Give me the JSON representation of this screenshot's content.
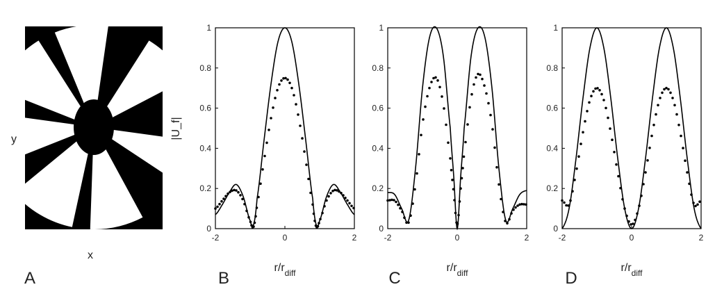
{
  "panel_a": {
    "letter": "A",
    "xlabel": "x",
    "ylabel": "y",
    "description_colors": {
      "foreground": "#000000",
      "background": "#ffffff"
    }
  },
  "panels": [
    {
      "letter": "B",
      "ylabel": "|U_f|",
      "xlabel_main": "r/r",
      "xlabel_sub": "diff"
    },
    {
      "letter": "C",
      "ylabel": "",
      "xlabel_main": "r/r",
      "xlabel_sub": "diff"
    },
    {
      "letter": "D",
      "ylabel": "",
      "xlabel_main": "r/r",
      "xlabel_sub": "diff"
    }
  ],
  "chart_data": [
    {
      "type": "line",
      "panel": "B",
      "xlim": [
        -2,
        2
      ],
      "ylim": [
        0,
        1
      ],
      "x_ticks": [
        "-2",
        "0",
        "2"
      ],
      "y_ticks": [
        "0",
        "0.2",
        "0.4",
        "0.6",
        "0.8",
        "1"
      ],
      "series": [
        {
          "style": "solid",
          "x": [
            -2,
            -1.8,
            -1.6,
            -1.4,
            -1.2,
            -1.0,
            -0.9,
            -0.8,
            -0.6,
            -0.4,
            -0.2,
            0,
            0.2,
            0.4,
            0.6,
            0.8,
            0.9,
            1.0,
            1.2,
            1.4,
            1.6,
            1.8,
            2
          ],
          "y": [
            0.07,
            0.12,
            0.18,
            0.22,
            0.16,
            0.04,
            0.02,
            0.15,
            0.44,
            0.72,
            0.93,
            1.0,
            0.93,
            0.72,
            0.44,
            0.15,
            0.02,
            0.04,
            0.16,
            0.22,
            0.18,
            0.12,
            0.07
          ]
        },
        {
          "style": "dotted",
          "x": [
            -2,
            -1.8,
            -1.6,
            -1.4,
            -1.2,
            -1.0,
            -0.9,
            -0.8,
            -0.6,
            -0.4,
            -0.2,
            0,
            0.2,
            0.4,
            0.6,
            0.8,
            0.9,
            1.0,
            1.2,
            1.4,
            1.6,
            1.8,
            2
          ],
          "y": [
            0.1,
            0.14,
            0.18,
            0.19,
            0.14,
            0.04,
            0.01,
            0.12,
            0.34,
            0.55,
            0.7,
            0.75,
            0.7,
            0.55,
            0.34,
            0.12,
            0.01,
            0.04,
            0.14,
            0.19,
            0.18,
            0.14,
            0.1
          ]
        }
      ]
    },
    {
      "type": "line",
      "panel": "C",
      "xlim": [
        -2,
        2
      ],
      "ylim": [
        0,
        1
      ],
      "x_ticks": [
        "-2",
        "0",
        "2"
      ],
      "y_ticks": [
        "0",
        "0.2",
        "0.4",
        "0.6",
        "0.8",
        "1"
      ],
      "series": [
        {
          "style": "solid",
          "x": [
            -2,
            -1.8,
            -1.6,
            -1.4,
            -1.2,
            -1.0,
            -0.8,
            -0.6,
            -0.4,
            -0.2,
            -0.1,
            0,
            0.1,
            0.2,
            0.4,
            0.6,
            0.8,
            1.0,
            1.2,
            1.4,
            1.6,
            1.8,
            2
          ],
          "y": [
            0.18,
            0.17,
            0.1,
            0.04,
            0.3,
            0.7,
            0.95,
            1.0,
            0.86,
            0.5,
            0.26,
            0.0,
            0.26,
            0.5,
            0.86,
            1.0,
            0.95,
            0.7,
            0.3,
            0.04,
            0.1,
            0.17,
            0.19
          ]
        },
        {
          "style": "dotted",
          "x": [
            -2,
            -1.8,
            -1.6,
            -1.4,
            -1.2,
            -1.0,
            -0.8,
            -0.6,
            -0.4,
            -0.2,
            -0.1,
            0,
            0.1,
            0.2,
            0.4,
            0.6,
            0.8,
            1.0,
            1.2,
            1.4,
            1.6,
            1.8,
            2
          ],
          "y": [
            0.14,
            0.14,
            0.09,
            0.03,
            0.22,
            0.52,
            0.7,
            0.75,
            0.62,
            0.35,
            0.18,
            0.02,
            0.2,
            0.38,
            0.65,
            0.77,
            0.7,
            0.52,
            0.22,
            0.03,
            0.09,
            0.12,
            0.12
          ]
        }
      ]
    },
    {
      "type": "line",
      "panel": "D",
      "xlim": [
        -2,
        2
      ],
      "ylim": [
        0,
        1
      ],
      "x_ticks": [
        "-2",
        "0",
        "2"
      ],
      "y_ticks": [
        "0",
        "0.2",
        "0.4",
        "0.6",
        "0.8",
        "1"
      ],
      "series": [
        {
          "style": "solid",
          "x": [
            -2,
            -1.8,
            -1.6,
            -1.4,
            -1.2,
            -1.0,
            -0.8,
            -0.6,
            -0.4,
            -0.2,
            0,
            0.2,
            0.4,
            0.6,
            0.8,
            1.0,
            1.2,
            1.4,
            1.6,
            1.8,
            2
          ],
          "y": [
            0.0,
            0.1,
            0.35,
            0.65,
            0.9,
            1.0,
            0.9,
            0.65,
            0.35,
            0.1,
            0.0,
            0.1,
            0.35,
            0.65,
            0.9,
            1.0,
            0.9,
            0.65,
            0.35,
            0.1,
            0.0
          ]
        },
        {
          "style": "dotted",
          "x": [
            -2,
            -1.8,
            -1.6,
            -1.4,
            -1.2,
            -1.0,
            -0.8,
            -0.6,
            -0.4,
            -0.2,
            0,
            0.2,
            0.4,
            0.6,
            0.8,
            1.0,
            1.2,
            1.4,
            1.6,
            1.8,
            2
          ],
          "y": [
            0.14,
            0.12,
            0.28,
            0.48,
            0.64,
            0.7,
            0.64,
            0.48,
            0.28,
            0.1,
            0.02,
            0.1,
            0.28,
            0.48,
            0.64,
            0.7,
            0.64,
            0.48,
            0.28,
            0.12,
            0.14
          ]
        }
      ]
    }
  ]
}
